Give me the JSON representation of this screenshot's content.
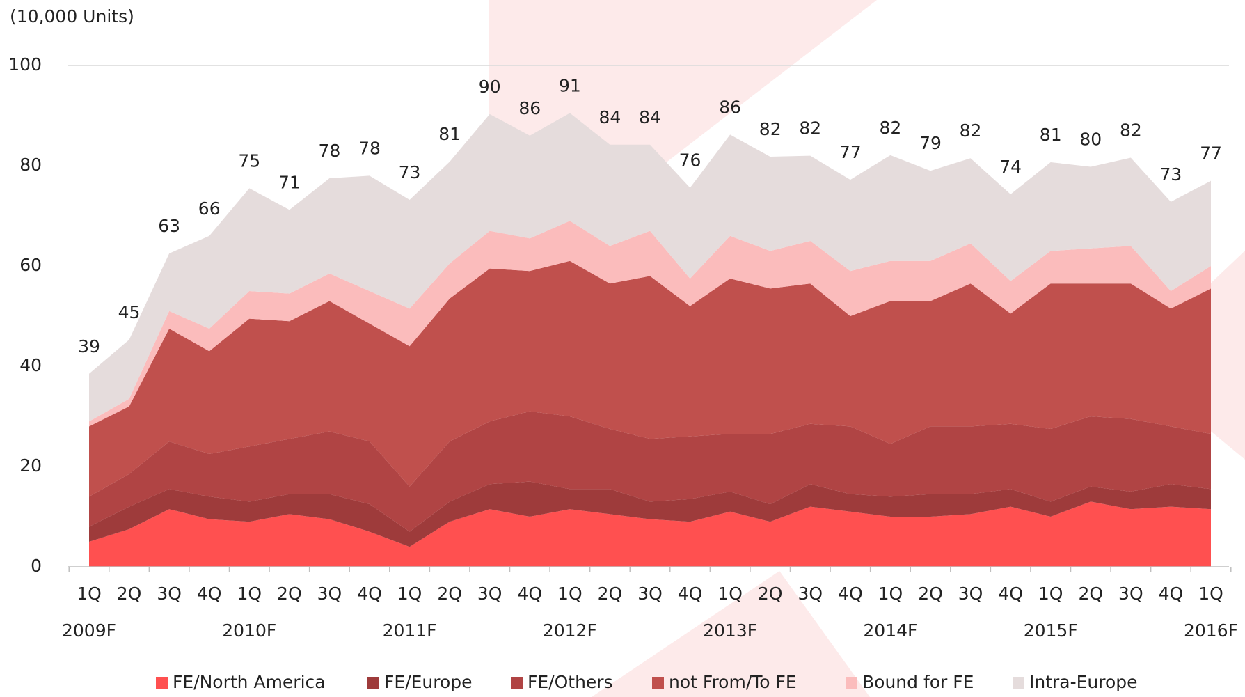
{
  "chart_data": {
    "type": "stacked_area",
    "unit_label": "(10,000 Units)",
    "categories": [
      "1Q",
      "2Q",
      "3Q",
      "4Q",
      "1Q",
      "2Q",
      "3Q",
      "4Q",
      "1Q",
      "2Q",
      "3Q",
      "4Q",
      "1Q",
      "2Q",
      "3Q",
      "4Q",
      "1Q",
      "2Q",
      "3Q",
      "4Q",
      "1Q",
      "2Q",
      "3Q",
      "4Q",
      "1Q",
      "2Q",
      "3Q",
      "4Q",
      "1Q"
    ],
    "years": [
      "2009F",
      null,
      null,
      null,
      "2010F",
      null,
      null,
      null,
      "2011F",
      null,
      null,
      null,
      "2012F",
      null,
      null,
      null,
      "2013F",
      null,
      null,
      null,
      "2014F",
      null,
      null,
      null,
      "2015F",
      null,
      null,
      null,
      "2016F"
    ],
    "ylim": [
      0,
      100
    ],
    "yticks": [
      0,
      20,
      40,
      60,
      80,
      100
    ],
    "grid": false,
    "legend": "bottom",
    "series": [
      {
        "name": "FE/North America",
        "color": "#ff5050",
        "values": [
          5,
          7.5,
          11.5,
          9.5,
          9,
          10.5,
          9.5,
          7,
          4,
          9,
          11.5,
          10,
          11.5,
          10.5,
          9.5,
          9,
          11,
          9,
          12,
          11,
          10,
          10,
          10.5,
          12,
          10,
          13,
          11.5,
          12,
          11.5
        ]
      },
      {
        "name": "FE/Europe",
        "color": "#9e3b3b",
        "values": [
          3,
          4.5,
          4,
          4.5,
          4,
          4,
          5,
          5.5,
          3,
          4,
          5,
          7,
          4,
          5,
          3.5,
          4.5,
          4,
          3.5,
          4.5,
          3.5,
          4,
          4.5,
          4,
          3.5,
          3,
          3,
          3.5,
          4.5,
          4
        ]
      },
      {
        "name": "FE/Others",
        "color": "#b04444",
        "values": [
          6,
          6.5,
          9.5,
          8.5,
          11,
          11,
          12.5,
          12.5,
          9,
          12,
          12.5,
          14,
          14.5,
          12,
          12.5,
          12.5,
          11.5,
          14,
          12,
          13.5,
          10.5,
          13.5,
          13.5,
          13,
          14.5,
          14,
          14.5,
          11.5,
          11
        ]
      },
      {
        "name": "not From/To FE",
        "color": "#c0504d",
        "values": [
          14,
          13.5,
          22.5,
          20.5,
          25.5,
          23.5,
          26,
          23.5,
          28,
          28.5,
          30.5,
          28,
          31,
          29,
          32.5,
          26,
          31,
          29,
          28,
          22,
          28.5,
          25,
          28.5,
          22,
          29,
          26.5,
          27,
          23.5,
          29
        ]
      },
      {
        "name": "Bound for FE",
        "color": "#fbbcbc",
        "values": [
          1,
          1.5,
          3.5,
          4.5,
          5.5,
          5.5,
          5.5,
          6.5,
          7.5,
          7,
          7.5,
          6.5,
          8,
          7.5,
          9,
          5.5,
          8.5,
          7.5,
          8.5,
          9,
          8,
          8,
          8,
          6.5,
          6.5,
          7,
          7.5,
          3.5,
          4.5
        ]
      },
      {
        "name": "Intra-Europe",
        "color": "#e5dcdc",
        "values": [
          9.5,
          11.8,
          11.5,
          18.5,
          20.5,
          16.7,
          19,
          23,
          21.7,
          20.3,
          23.3,
          20.5,
          21.5,
          20.2,
          17.2,
          18.1,
          20.2,
          18.8,
          17,
          18.2,
          21.1,
          18,
          17,
          17.3,
          17.7,
          16.3,
          17.6,
          17.8,
          17
        ]
      }
    ],
    "totals": [
      39,
      45,
      63,
      66,
      75,
      71,
      78,
      78,
      73,
      81,
      90,
      86,
      91,
      84,
      84,
      76,
      86,
      82,
      82,
      77,
      82,
      79,
      82,
      74,
      81,
      80,
      82,
      73,
      77
    ]
  }
}
